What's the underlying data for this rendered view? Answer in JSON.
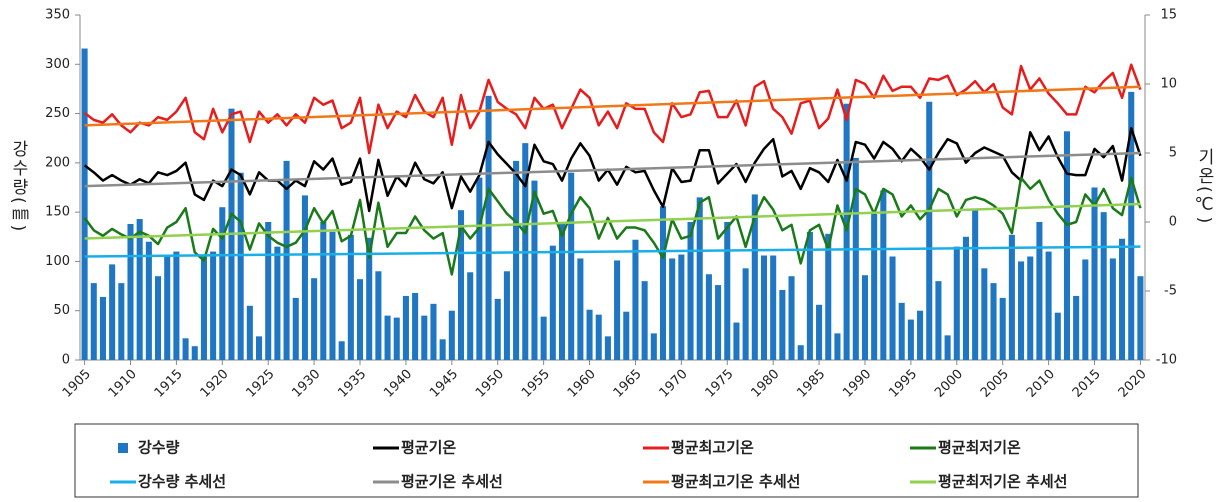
{
  "chart_data": {
    "type": "bar_line",
    "y_label": "강수량(㎜)",
    "y2_label": "기온(℃)",
    "xlim": [
      1904.5,
      2020.5
    ],
    "xticks": [
      1905,
      1910,
      1915,
      1920,
      1925,
      1930,
      1935,
      1940,
      1945,
      1950,
      1955,
      1960,
      1965,
      1970,
      1975,
      1980,
      1985,
      1990,
      1995,
      2000,
      2005,
      2010,
      2015,
      2020
    ],
    "ylim": [
      0,
      350
    ],
    "yticks": [
      0,
      50,
      100,
      150,
      200,
      250,
      300,
      350
    ],
    "y2lim": [
      -10,
      15
    ],
    "y2ticks": [
      -10,
      -5,
      0,
      5,
      10,
      15
    ],
    "x": [
      1905,
      1906,
      1907,
      1908,
      1909,
      1910,
      1911,
      1912,
      1913,
      1914,
      1915,
      1916,
      1917,
      1918,
      1919,
      1920,
      1921,
      1922,
      1923,
      1924,
      1925,
      1926,
      1927,
      1928,
      1929,
      1930,
      1931,
      1932,
      1933,
      1934,
      1935,
      1936,
      1937,
      1938,
      1939,
      1940,
      1941,
      1942,
      1943,
      1944,
      1945,
      1946,
      1947,
      1948,
      1949,
      1950,
      1951,
      1952,
      1953,
      1954,
      1955,
      1956,
      1957,
      1958,
      1959,
      1960,
      1961,
      1962,
      1963,
      1964,
      1965,
      1966,
      1967,
      1968,
      1969,
      1970,
      1971,
      1972,
      1973,
      1974,
      1975,
      1976,
      1977,
      1978,
      1979,
      1980,
      1981,
      1982,
      1983,
      1984,
      1985,
      1986,
      1987,
      1988,
      1989,
      1990,
      1991,
      1992,
      1993,
      1994,
      1995,
      1996,
      1997,
      1998,
      1999,
      2000,
      2001,
      2002,
      2003,
      2004,
      2005,
      2006,
      2007,
      2008,
      2009,
      2010,
      2011,
      2012,
      2013,
      2014,
      2015,
      2016,
      2017,
      2018,
      2019,
      2020
    ],
    "series": [
      {
        "name": "강수량",
        "type": "bar",
        "color": "#1f77c4",
        "values": [
          316,
          78,
          64,
          97,
          78,
          138,
          143,
          120,
          85,
          105,
          110,
          22,
          14,
          105,
          110,
          155,
          255,
          190,
          55,
          24,
          140,
          115,
          202,
          63,
          167,
          83,
          140,
          130,
          19,
          127,
          82,
          124,
          90,
          45,
          43,
          65,
          68,
          45,
          57,
          21,
          50,
          152,
          89,
          185,
          268,
          62,
          90,
          202,
          220,
          182,
          44,
          116,
          140,
          190,
          103,
          51,
          46,
          24,
          101,
          49,
          122,
          80,
          27,
          156,
          103,
          107,
          140,
          165,
          87,
          76,
          140,
          38,
          93,
          168,
          106,
          106,
          71,
          85,
          15,
          130,
          56,
          128,
          27,
          260,
          205,
          86,
          150,
          172,
          105,
          58,
          41,
          50,
          262,
          80,
          25,
          115,
          125,
          152,
          93,
          78,
          63,
          127,
          100,
          105,
          140,
          110,
          48,
          232,
          65,
          102,
          175,
          150,
          103,
          123,
          272,
          85
        ]
      },
      {
        "name": "평균기온",
        "type": "line",
        "axis": "y2",
        "color": "#000000",
        "values": [
          4.1,
          3.6,
          3.0,
          3.4,
          3.0,
          2.7,
          3.1,
          2.8,
          3.6,
          3.4,
          3.7,
          4.3,
          2.0,
          1.6,
          3.0,
          2.6,
          3.8,
          3.4,
          2.0,
          3.6,
          3.0,
          3.0,
          2.4,
          3.0,
          2.6,
          4.4,
          3.8,
          4.6,
          2.7,
          2.9,
          4.6,
          0.8,
          4.5,
          1.9,
          3.3,
          2.6,
          4.3,
          3.1,
          2.8,
          3.6,
          1.0,
          3.3,
          2.2,
          3.4,
          5.8,
          4.9,
          4.2,
          3.5,
          2.6,
          5.6,
          4.4,
          4.2,
          3.0,
          4.6,
          5.7,
          4.8,
          3.0,
          3.8,
          2.7,
          4.0,
          3.6,
          3.7,
          2.3,
          1.1,
          3.9,
          2.9,
          3.0,
          5.2,
          5.2,
          2.8,
          3.5,
          4.2,
          2.9,
          4.3,
          5.3,
          6.0,
          3.3,
          3.7,
          2.4,
          3.9,
          3.6,
          2.9,
          4.5,
          3.0,
          5.8,
          5.6,
          4.6,
          5.8,
          5.3,
          4.4,
          5.3,
          4.7,
          3.8,
          5.0,
          6.0,
          5.7,
          4.3,
          5.0,
          5.4,
          5.1,
          4.8,
          3.6,
          3.0,
          6.5,
          5.2,
          6.2,
          4.7,
          3.5,
          3.4,
          3.4,
          5.3,
          4.7,
          5.5,
          3.0,
          6.8,
          4.8
        ]
      },
      {
        "name": "평균최고기온",
        "type": "line",
        "axis": "y2",
        "color": "#e81c1c",
        "values": [
          7.9,
          7.4,
          7.2,
          7.8,
          7.0,
          6.5,
          7.2,
          7.0,
          7.6,
          7.4,
          8.0,
          9.0,
          6.5,
          6.0,
          8.2,
          6.5,
          7.8,
          8.0,
          5.8,
          8.0,
          7.2,
          7.8,
          7.0,
          7.8,
          7.2,
          9.0,
          8.5,
          8.8,
          6.8,
          7.2,
          9.0,
          5.0,
          8.5,
          6.8,
          8.0,
          7.6,
          9.2,
          8.0,
          7.6,
          9.0,
          5.6,
          9.2,
          6.8,
          8.0,
          10.3,
          8.7,
          8.2,
          7.8,
          6.8,
          9.0,
          8.2,
          8.5,
          6.8,
          8.2,
          9.6,
          9.0,
          7.0,
          8.0,
          6.8,
          8.6,
          8.2,
          8.2,
          6.5,
          5.8,
          8.6,
          7.6,
          7.8,
          9.4,
          9.5,
          7.6,
          7.6,
          8.8,
          7.0,
          9.8,
          10.2,
          8.2,
          7.6,
          6.4,
          8.6,
          8.8,
          6.8,
          7.5,
          9.6,
          7.4,
          10.3,
          10.0,
          9.0,
          10.6,
          9.5,
          9.8,
          9.8,
          9.0,
          10.4,
          10.3,
          10.6,
          9.2,
          9.6,
          10.2,
          9.4,
          10.0,
          8.3,
          7.8,
          11.3,
          9.6,
          10.4,
          9.3,
          8.6,
          7.8,
          7.8,
          9.8,
          9.4,
          10.2,
          10.8,
          9.0,
          11.4,
          9.6
        ]
      },
      {
        "name": "평균최저기온",
        "type": "line",
        "axis": "y2",
        "color": "#1a7a1a",
        "values": [
          0.3,
          -0.6,
          -1.0,
          -0.5,
          -0.9,
          -1.2,
          -0.7,
          -1.0,
          -1.6,
          -0.4,
          0.0,
          1.0,
          -2.2,
          -2.8,
          -0.5,
          -1.2,
          0.6,
          0.0,
          -2.0,
          -0.1,
          -1.0,
          -1.5,
          -1.8,
          -1.5,
          -0.6,
          1.0,
          -0.1,
          0.8,
          -1.4,
          -1.0,
          1.6,
          -2.6,
          1.4,
          -1.8,
          -0.8,
          -0.8,
          0.4,
          -0.6,
          -1.2,
          -0.8,
          -3.8,
          -0.3,
          -1.2,
          -0.4,
          2.4,
          1.5,
          0.6,
          0.0,
          -0.8,
          2.2,
          0.6,
          0.8,
          -1.0,
          0.6,
          1.8,
          1.0,
          -1.2,
          0.3,
          -1.2,
          -0.4,
          -0.4,
          -0.6,
          -1.5,
          -2.6,
          0.2,
          -1.2,
          -1.0,
          1.4,
          1.8,
          -1.2,
          -0.4,
          0.4,
          -1.8,
          0.4,
          1.8,
          0.9,
          -0.6,
          -0.2,
          -3.0,
          -0.6,
          -0.2,
          -2.0,
          1.2,
          -0.6,
          2.4,
          2.0,
          0.6,
          2.4,
          2.0,
          0.4,
          1.2,
          0.2,
          0.9,
          2.4,
          2.0,
          0.4,
          1.6,
          1.8,
          1.6,
          1.2,
          0.6,
          -0.8,
          3.2,
          2.4,
          3.0,
          1.6,
          0.6,
          -0.2,
          0.0,
          2.0,
          1.2,
          2.4,
          1.0,
          0.5,
          3.2,
          1.0
        ]
      },
      {
        "name": "강수량 추세선",
        "type": "line",
        "color": "#1aaee8",
        "x": [
          1905,
          2020
        ],
        "values": [
          105,
          115
        ]
      },
      {
        "name": "평균기온 추세선",
        "type": "line",
        "axis": "y2",
        "color": "#8c8c8c",
        "x": [
          1905,
          2020
        ],
        "values": [
          2.6,
          5.0
        ]
      },
      {
        "name": "평균최고기온 추세선",
        "type": "line",
        "axis": "y2",
        "color": "#f07818",
        "x": [
          1905,
          2020
        ],
        "values": [
          7.0,
          9.8
        ]
      },
      {
        "name": "평균최저기온 추세선",
        "type": "line",
        "axis": "y2",
        "color": "#92d050",
        "x": [
          1905,
          2020
        ],
        "values": [
          -1.2,
          1.3
        ]
      }
    ]
  }
}
